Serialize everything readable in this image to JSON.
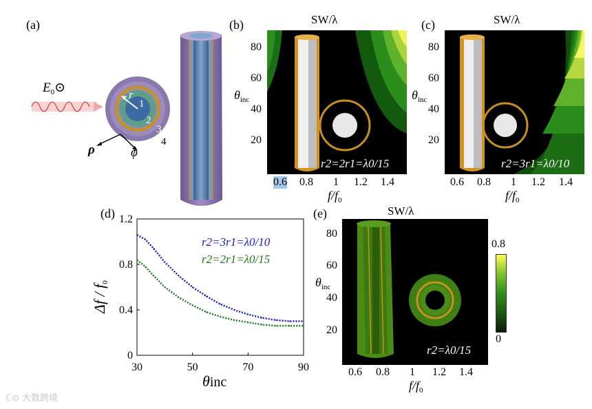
{
  "labels": {
    "a": "(a)",
    "b": "(b)",
    "c": "(c)",
    "d": "(d)",
    "e": "(e)"
  },
  "panel_a": {
    "field_label": "E",
    "field_sub": "0",
    "field_symbol": "⊙",
    "r_label": "r",
    "region1": "1",
    "region2": "2",
    "region3": "3",
    "region4": "4",
    "rho": "ρ",
    "phi": "ϕ"
  },
  "colormap_title": "SW/λ",
  "maps": {
    "b": {
      "yticks": [
        "20",
        "40",
        "60",
        "80"
      ],
      "xticks": [
        "0.6",
        "0.8",
        "1",
        "1.2",
        "1.4"
      ],
      "inset": "r2=2r1=λ0/15"
    },
    "c": {
      "yticks": [
        "20",
        "40",
        "60",
        "80"
      ],
      "xticks": [
        "0.6",
        "0.8",
        "1",
        "1.2",
        "1.4"
      ],
      "inset": "r2=3r1=λ0/10"
    },
    "e": {
      "yticks": [
        "20",
        "40",
        "60",
        "80"
      ],
      "xticks": [
        "0.6",
        "0.8",
        "1",
        "1.2",
        "1.4"
      ],
      "inset": "r2=λ0/15"
    }
  },
  "axis_theta": "θ",
  "axis_theta_sub": "inc",
  "axis_f": "f/f",
  "axis_f_sub": "0",
  "colorbar": {
    "max": "0.8",
    "min": "0",
    "colors": [
      "#0b1a05",
      "#1c5a12",
      "#2f8f1e",
      "#7fc22c",
      "#ffff55"
    ]
  },
  "chart_data": {
    "type": "line",
    "xlabel": "θinc",
    "ylabel": "Δf/f0",
    "xlim": [
      30,
      90
    ],
    "ylim": [
      0,
      1.2
    ],
    "xticks": [
      30,
      50,
      70,
      90
    ],
    "yticks": [
      0,
      0.4,
      0.8,
      1.2
    ],
    "x": [
      30,
      33,
      36,
      40,
      45,
      50,
      55,
      60,
      65,
      70,
      75,
      80,
      85,
      90
    ],
    "series": [
      {
        "name": "r2=3r1=λ0/10",
        "color": "#1a1ad6",
        "values": [
          1.06,
          1.02,
          0.94,
          0.82,
          0.7,
          0.6,
          0.52,
          0.45,
          0.4,
          0.36,
          0.33,
          0.31,
          0.3,
          0.3
        ]
      },
      {
        "name": "r2=2r1=λ0/15",
        "color": "#1a7a1a",
        "values": [
          0.84,
          0.78,
          0.7,
          0.6,
          0.51,
          0.44,
          0.38,
          0.34,
          0.31,
          0.29,
          0.27,
          0.26,
          0.26,
          0.26
        ]
      }
    ],
    "legend_labels": [
      "r2=3r1=λ0/10",
      "r2=2r1=λ0/15"
    ]
  },
  "watermark": "大数跨境"
}
